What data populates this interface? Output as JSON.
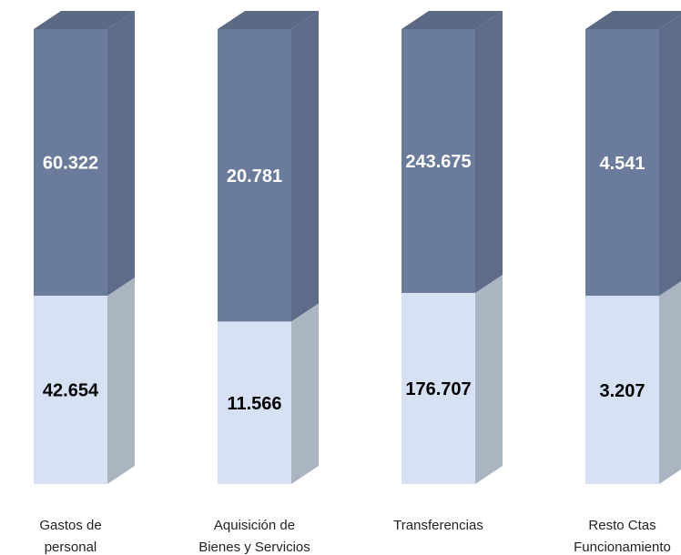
{
  "chart_data": {
    "type": "stacked_bar_100",
    "categories": [
      [
        "Gastos de",
        "personal"
      ],
      [
        "Aquisición de",
        "Bienes y Servicios"
      ],
      [
        "Transferencias"
      ],
      [
        "Resto Ctas",
        "Funcionamiento"
      ]
    ],
    "series": [
      {
        "color": "#d6e2f3",
        "values": [
          42.654,
          11.566,
          176.707,
          3.207
        ]
      },
      {
        "color": "#6b7b9c",
        "values": [
          60.322,
          20.781,
          243.675,
          4.541
        ]
      }
    ]
  }
}
